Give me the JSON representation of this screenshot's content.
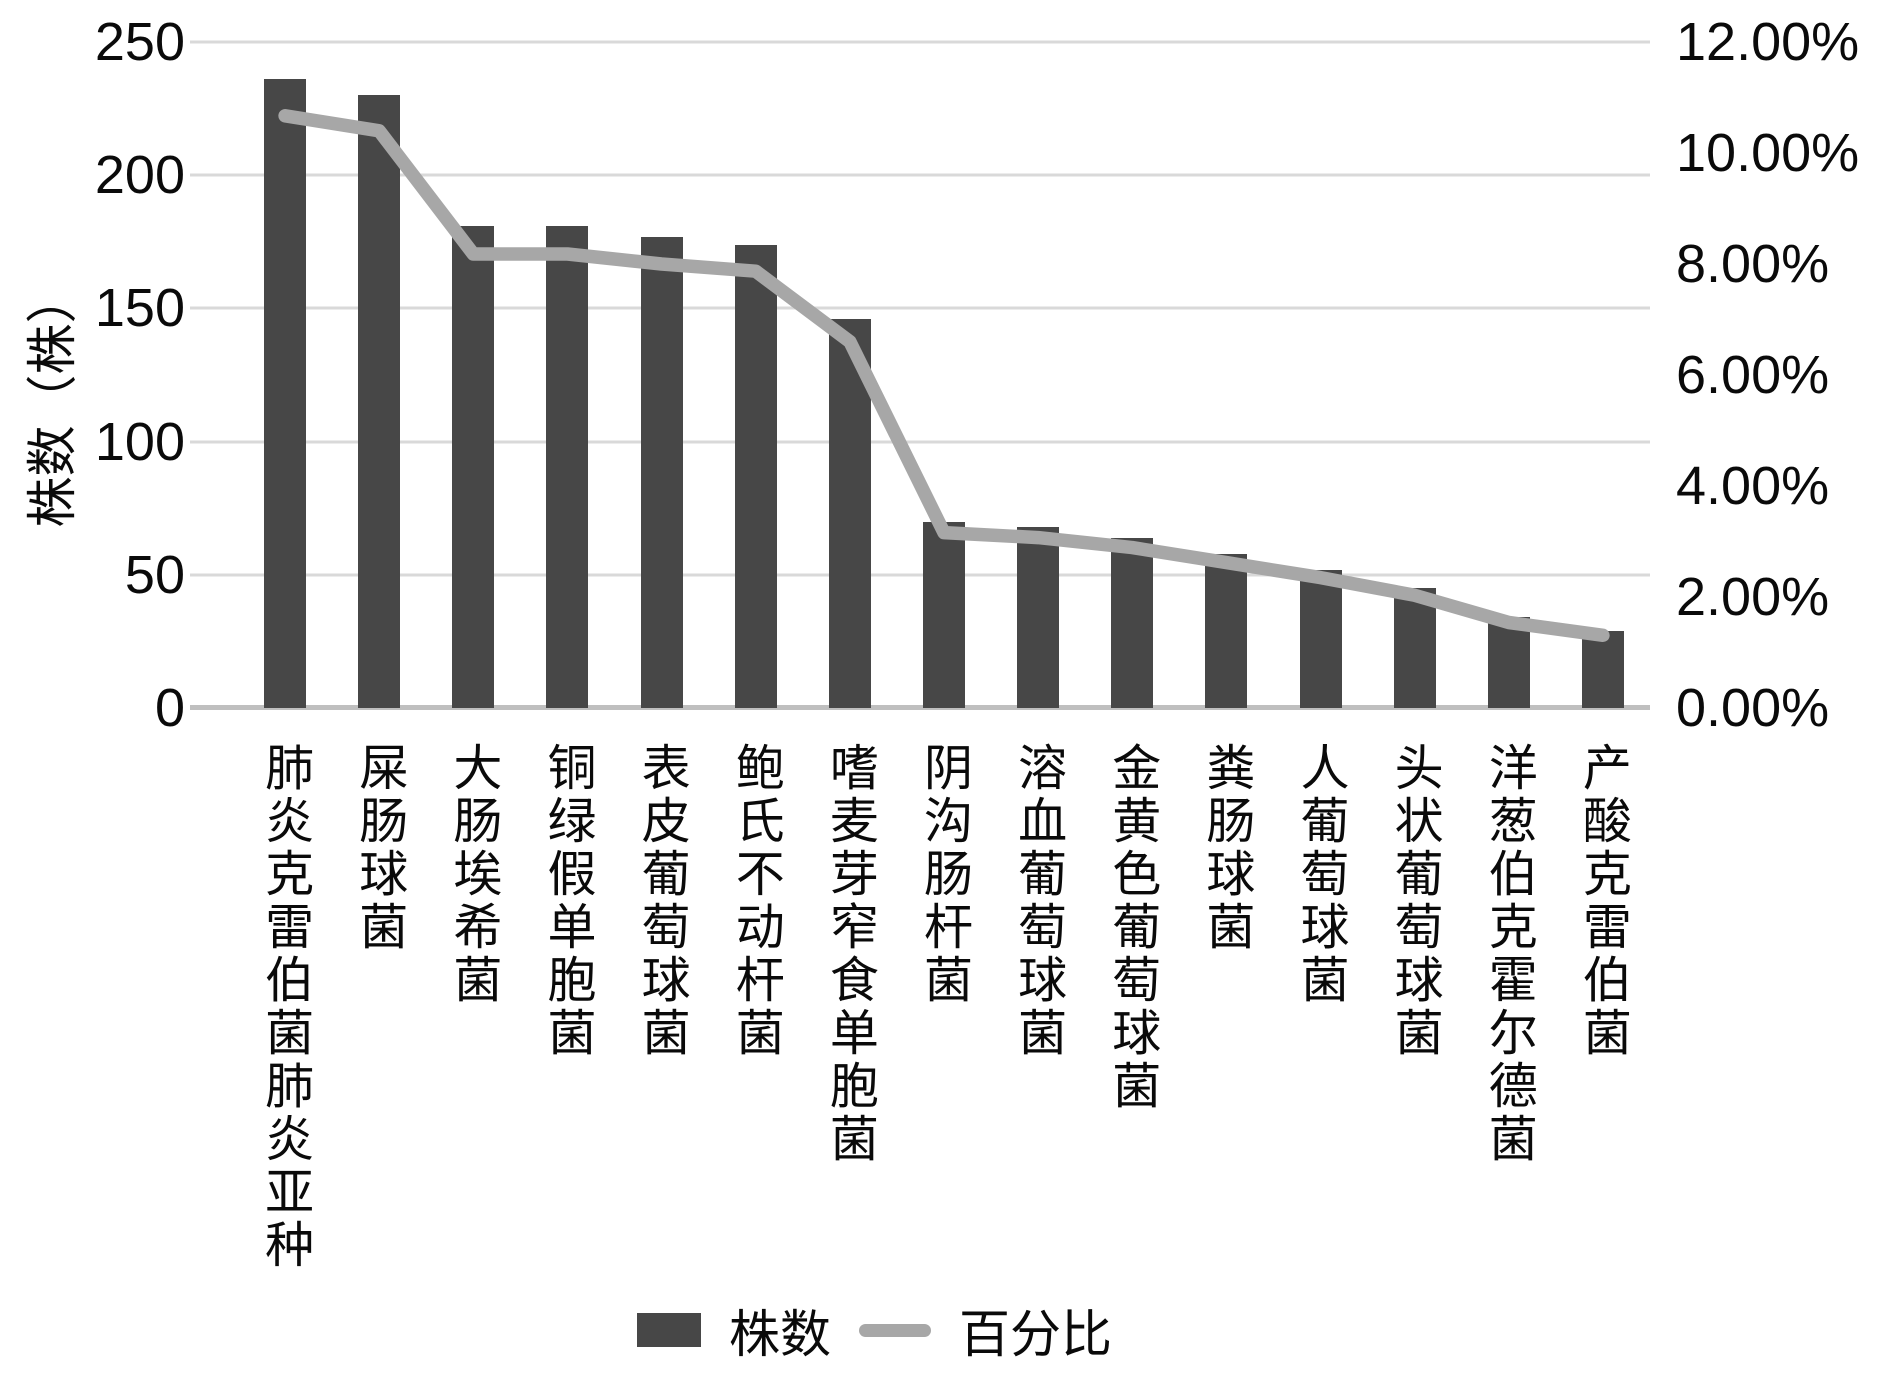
{
  "chart_data": {
    "type": "bar",
    "title": "",
    "categories": [
      "肺炎克雷伯菌肺炎亚种",
      "屎肠球菌",
      "大肠埃希菌",
      "铜绿假单胞菌",
      "表皮葡萄球菌",
      "鲍氏不动杆菌",
      "嗜麦芽窄食单胞菌",
      "阴沟肠杆菌",
      "溶血葡萄球菌",
      "金黄色葡萄球菌",
      "粪肠球菌",
      "人葡萄球菌",
      "头状葡萄球菌",
      "洋葱伯克霍尔德菌",
      "产酸克雷伯菌"
    ],
    "series": [
      {
        "name": "株数",
        "type": "bar",
        "axis": "left",
        "values": [
          236,
          230,
          181,
          181,
          177,
          174,
          146,
          70,
          68,
          64,
          58,
          52,
          45,
          34,
          29
        ]
      },
      {
        "name": "百分比",
        "type": "line",
        "axis": "right",
        "values_percent": [
          10.67,
          10.4,
          8.18,
          8.18,
          8.0,
          7.87,
          6.6,
          3.16,
          3.07,
          2.89,
          2.62,
          2.35,
          2.03,
          1.54,
          1.31
        ]
      }
    ],
    "axis_left": {
      "title": "株数（株）",
      "min": 0,
      "max": 250,
      "ticks": [
        "250",
        "200",
        "150",
        "100",
        "50",
        "0"
      ]
    },
    "axis_right": {
      "min_percent": 0,
      "max_percent": 12,
      "ticks": [
        "12.00%",
        "10.00%",
        "8.00%",
        "6.00%",
        "4.00%",
        "2.00%",
        "0.00%"
      ]
    },
    "legend": {
      "position": "bottom",
      "entries": [
        "株数",
        "百分比"
      ]
    },
    "grid": true,
    "colors": {
      "bar": "#474747",
      "line": "#a7a7a7",
      "gridline": "#d9d9d9",
      "axis_line": "#bfbfbf",
      "text": "#000000"
    }
  }
}
